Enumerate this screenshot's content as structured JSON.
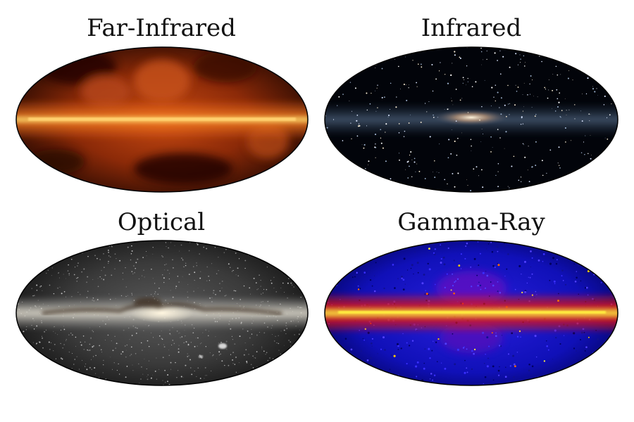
{
  "panels": [
    {
      "title": "Far-Infrared",
      "band": "far-infrared",
      "palette": [
        "#7a1e05",
        "#d8571a",
        "#ffd070"
      ]
    },
    {
      "title": "Infrared",
      "band": "infrared",
      "palette": [
        "#02040a",
        "#6a86a8",
        "#f2e2c0"
      ]
    },
    {
      "title": "Optical",
      "band": "optical",
      "palette": [
        "#1a1a1a",
        "#8a8a8a",
        "#fff6e0"
      ]
    },
    {
      "title": "Gamma-Ray",
      "band": "gamma-ray",
      "palette": [
        "#0a0ad0",
        "#ff1a00",
        "#ffee40"
      ]
    }
  ]
}
